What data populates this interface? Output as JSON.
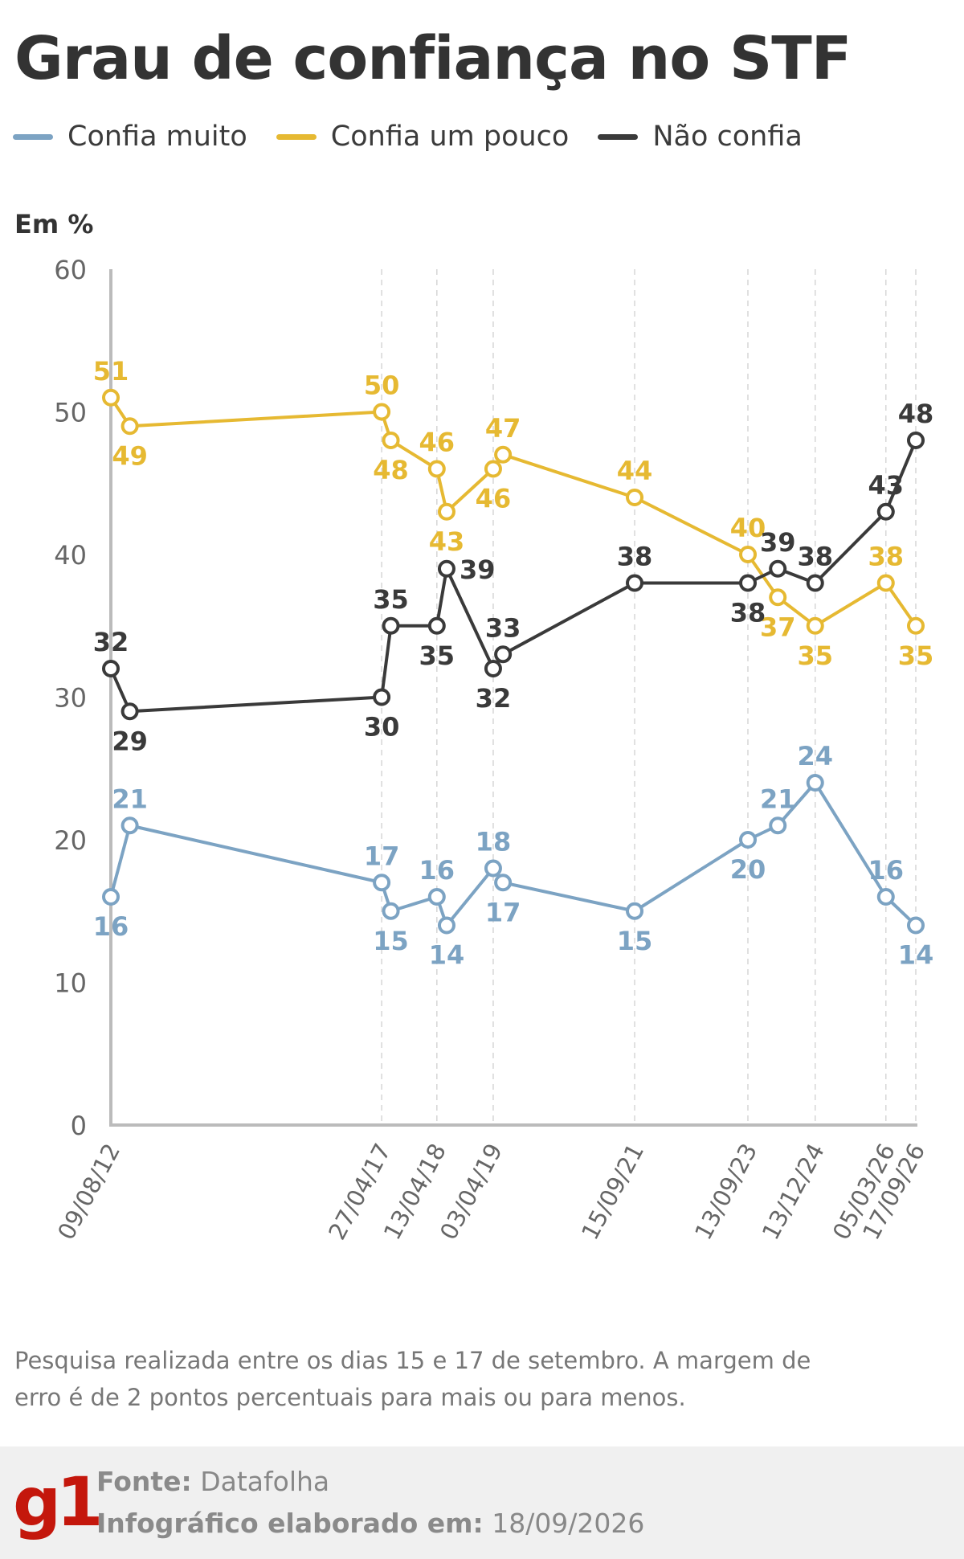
{
  "title": "Grau de confiança no STF",
  "unit_label": "Em %",
  "note": "Pesquisa realizada entre os dias 15 e 17 de setembro. A margem de erro é de 2 pontos percentuais para mais ou para menos.",
  "footer": {
    "logo": "g1",
    "source_label": "Fonte:",
    "source_value": "Datafolha",
    "credit_label": "Infográfico elaborado em:",
    "credit_value": "18/09/2026"
  },
  "colors": {
    "muito": "#7ca3c3",
    "pouco": "#e6b932",
    "nao": "#3a3a3a",
    "axis": "#bbbbbb",
    "grid": "#d6d6d6"
  },
  "chart_data": {
    "type": "line",
    "ylim": [
      0,
      60
    ],
    "yticks": [
      0,
      10,
      20,
      30,
      40,
      50,
      60
    ],
    "grid": "dashed vertical lines at labeled dates",
    "legend_position": "top-left",
    "x": [
      "09/08/12",
      "",
      "27/04/17",
      "",
      "13/04/18",
      "",
      "03/04/19",
      "",
      "15/09/21",
      "13/09/23",
      "",
      "13/12/24",
      "05/03/26",
      "17/09/26"
    ],
    "x_positions": [
      0,
      0.33,
      4.71,
      4.87,
      5.67,
      5.84,
      6.65,
      6.82,
      9.11,
      11.08,
      11.6,
      12.25,
      13.48,
      14
    ],
    "xtick_labels": [
      "09/08/12",
      "27/04/17",
      "13/04/18",
      "03/04/19",
      "15/09/21",
      "13/09/23",
      "13/12/24",
      "05/03/26",
      "17/09/26"
    ],
    "xtick_positions": [
      0,
      4.71,
      5.67,
      6.65,
      9.11,
      11.08,
      12.25,
      13.48,
      14
    ],
    "series": [
      {
        "name": "Confia muito",
        "key": "muito",
        "values": [
          16,
          21,
          17,
          15,
          16,
          14,
          18,
          17,
          15,
          20,
          21,
          24,
          16,
          14
        ],
        "label_side": [
          "below",
          "above",
          "above",
          "below",
          "above",
          "below",
          "above",
          "below",
          "below",
          "below",
          "above",
          "above",
          "above",
          "below"
        ]
      },
      {
        "name": "Confia um pouco",
        "key": "pouco",
        "values": [
          51,
          49,
          50,
          48,
          46,
          43,
          46,
          47,
          44,
          40,
          37,
          35,
          38,
          35
        ],
        "label_side": [
          "above",
          "below",
          "above",
          "below",
          "above",
          "below",
          "below",
          "above",
          "above",
          "above",
          "below",
          "below",
          "above",
          "below"
        ]
      },
      {
        "name": "Não confia",
        "key": "nao",
        "values": [
          32,
          29,
          30,
          35,
          35,
          39,
          32,
          33,
          38,
          38,
          39,
          38,
          43,
          48
        ],
        "label_side": [
          "above",
          "below",
          "below",
          "above",
          "below",
          "right",
          "below",
          "above",
          "above",
          "below",
          "above",
          "above",
          "above",
          "above"
        ]
      }
    ]
  }
}
